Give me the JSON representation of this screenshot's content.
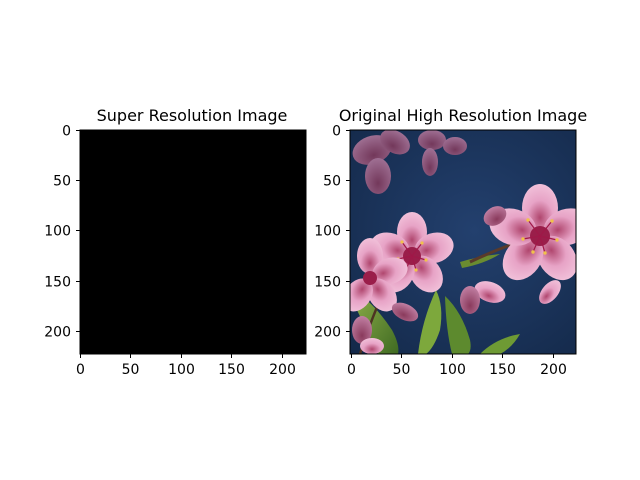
{
  "chart_data": [
    {
      "type": "image",
      "title": "Super Resolution Image",
      "xlabel": "",
      "ylabel": "",
      "xlim": [
        0,
        224
      ],
      "ylim": [
        224,
        0
      ],
      "xticks": [
        0,
        50,
        100,
        150,
        200
      ],
      "yticks": [
        0,
        50,
        100,
        150,
        200
      ],
      "xtick_labels": [
        "0",
        "50",
        "100",
        "150",
        "200"
      ],
      "ytick_labels": [
        "0",
        "50",
        "100",
        "150",
        "200"
      ],
      "image_content": "solid-black",
      "image_color": "#000000"
    },
    {
      "type": "image",
      "title": "Original High Resolution Image",
      "xlabel": "",
      "ylabel": "",
      "xlim": [
        0,
        224
      ],
      "ylim": [
        224,
        0
      ],
      "xticks": [
        0,
        50,
        100,
        150,
        200
      ],
      "yticks": [
        0,
        50,
        100,
        150,
        200
      ],
      "xtick_labels": [
        "0",
        "50",
        "100",
        "150",
        "200"
      ],
      "ytick_labels": [
        "0",
        "50",
        "100",
        "150",
        "200"
      ],
      "image_content": "pink-blossoms-photo",
      "image_color": "#1b3560"
    }
  ]
}
